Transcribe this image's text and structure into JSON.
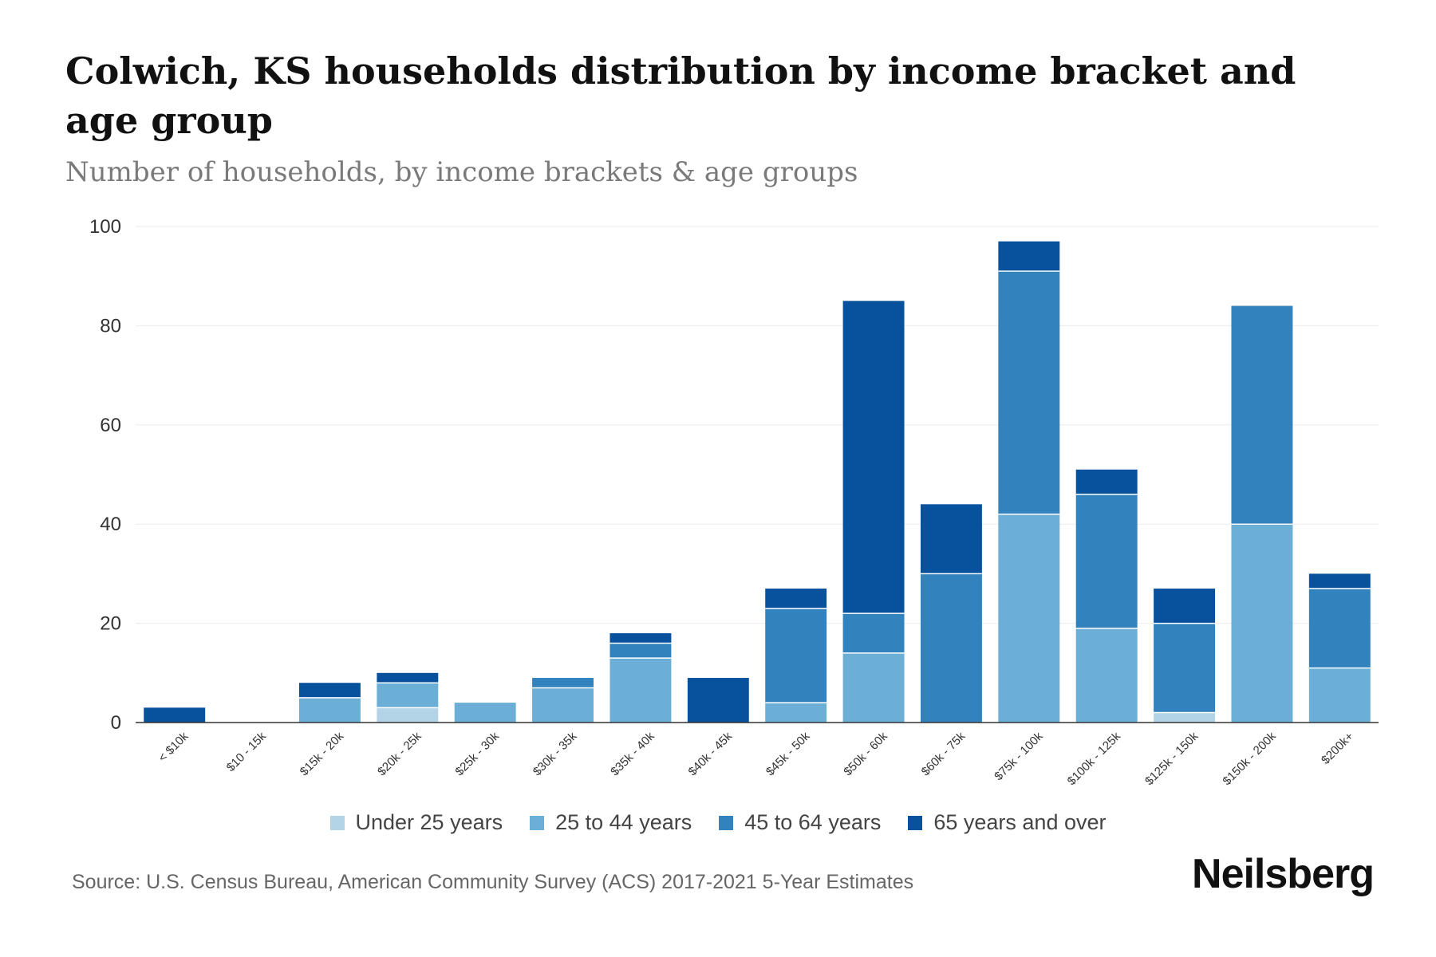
{
  "header": {
    "title": "Colwich, KS households distribution by income bracket and age group",
    "subtitle": "Number of households, by income brackets & age groups"
  },
  "footer": {
    "source": "Source: U.S. Census Bureau, American Community Survey (ACS) 2017-2021 5-Year Estimates",
    "brand": "Neilsberg"
  },
  "chart_data": {
    "type": "bar",
    "stacked": true,
    "title": "Colwich, KS households distribution by income bracket and age group",
    "subtitle": "Number of households, by income brackets & age groups",
    "xlabel": "",
    "ylabel": "",
    "ylim": [
      0,
      100
    ],
    "yticks": [
      0,
      20,
      40,
      60,
      80,
      100
    ],
    "grid": true,
    "legend_position": "bottom",
    "categories": [
      "< $10k",
      "$10 - 15k",
      "$15k - 20k",
      "$20k - 25k",
      "$25k - 30k",
      "$30k - 35k",
      "$35k - 40k",
      "$40k - 45k",
      "$45k - 50k",
      "$50k - 60k",
      "$60k - 75k",
      "$75k - 100k",
      "$100k - 125k",
      "$125k - 150k",
      "$150k - 200k",
      "$200k+"
    ],
    "series": [
      {
        "name": "Under 25 years",
        "color": "#b3d4e6",
        "values": [
          0,
          0,
          0,
          3,
          0,
          0,
          0,
          0,
          0,
          0,
          0,
          0,
          0,
          2,
          0,
          0
        ]
      },
      {
        "name": "25 to 44 years",
        "color": "#6baed6",
        "values": [
          0,
          0,
          5,
          5,
          4,
          7,
          13,
          0,
          4,
          14,
          0,
          42,
          19,
          0,
          40,
          11
        ]
      },
      {
        "name": "45 to 64 years",
        "color": "#3182bd",
        "values": [
          0,
          0,
          0,
          0,
          0,
          2,
          3,
          0,
          19,
          8,
          30,
          49,
          27,
          18,
          44,
          16
        ]
      },
      {
        "name": "65 years and over",
        "color": "#08519c",
        "values": [
          3,
          0,
          3,
          2,
          0,
          0,
          2,
          9,
          4,
          63,
          14,
          6,
          5,
          7,
          0,
          3
        ]
      }
    ]
  }
}
